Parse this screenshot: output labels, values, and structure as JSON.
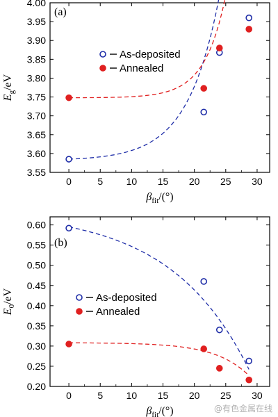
{
  "chart_data": [
    {
      "type": "scatter",
      "panel_label": "(a)",
      "xlabel": {
        "main": "β",
        "sub": "fit",
        "tail": "/(°)"
      },
      "ylabel": {
        "main": "E",
        "sub": "g",
        "tail": "/eV"
      },
      "xlim": [
        -3,
        32
      ],
      "ylim": [
        3.55,
        4.0
      ],
      "x_ticks": [
        0,
        5,
        10,
        15,
        20,
        25,
        30
      ],
      "y_ticks": [
        3.55,
        3.6,
        3.65,
        3.7,
        3.75,
        3.8,
        3.85,
        3.9,
        3.95,
        4.0
      ],
      "y_decimals": 2,
      "legend_position": "upper-middle",
      "series": [
        {
          "name": "As-deposited",
          "marker": "open-circle",
          "color": "#1f2ea8",
          "x": [
            0,
            21.5,
            24,
            28.7
          ],
          "y": [
            3.585,
            3.71,
            3.868,
            3.96
          ],
          "fit": {
            "a": 3.585,
            "b": 0.0036,
            "c": 0.2
          }
        },
        {
          "name": "Annealed",
          "marker": "filled-circle",
          "color": "#e02020",
          "x": [
            0,
            21.5,
            24,
            28.7
          ],
          "y": [
            3.748,
            3.773,
            3.88,
            3.93
          ],
          "fit": {
            "a": 3.748,
            "b": 0.00015,
            "c": 0.3
          }
        }
      ]
    },
    {
      "type": "scatter",
      "panel_label": "(b)",
      "xlabel": {
        "main": "β",
        "sub": "fit",
        "tail": "/(°)"
      },
      "ylabel": {
        "main": "E",
        "sub": "0",
        "tail": "/eV"
      },
      "xlim": [
        -3,
        32
      ],
      "ylim": [
        0.2,
        0.62
      ],
      "x_ticks": [
        0,
        5,
        10,
        15,
        20,
        25,
        30
      ],
      "y_ticks": [
        0.2,
        0.25,
        0.3,
        0.35,
        0.4,
        0.45,
        0.5,
        0.55,
        0.6
      ],
      "y_decimals": 2,
      "legend_position": "middle-left",
      "series": [
        {
          "name": "As-deposited",
          "marker": "open-circle",
          "color": "#1f2ea8",
          "x": [
            0,
            21.5,
            24,
            28.7
          ],
          "y": [
            0.592,
            0.46,
            0.34,
            0.263
          ],
          "fit": {
            "a": 0.595,
            "b": -0.0395,
            "c": 0.08
          }
        },
        {
          "name": "Annealed",
          "marker": "filled-circle",
          "color": "#e02020",
          "x": [
            0,
            21.5,
            24,
            28.7
          ],
          "y": [
            0.305,
            0.293,
            0.245,
            0.216
          ],
          "fit": {
            "a": 0.308,
            "b": -0.00035,
            "c": 0.19
          }
        }
      ]
    }
  ],
  "watermark": "@有色金属在线"
}
